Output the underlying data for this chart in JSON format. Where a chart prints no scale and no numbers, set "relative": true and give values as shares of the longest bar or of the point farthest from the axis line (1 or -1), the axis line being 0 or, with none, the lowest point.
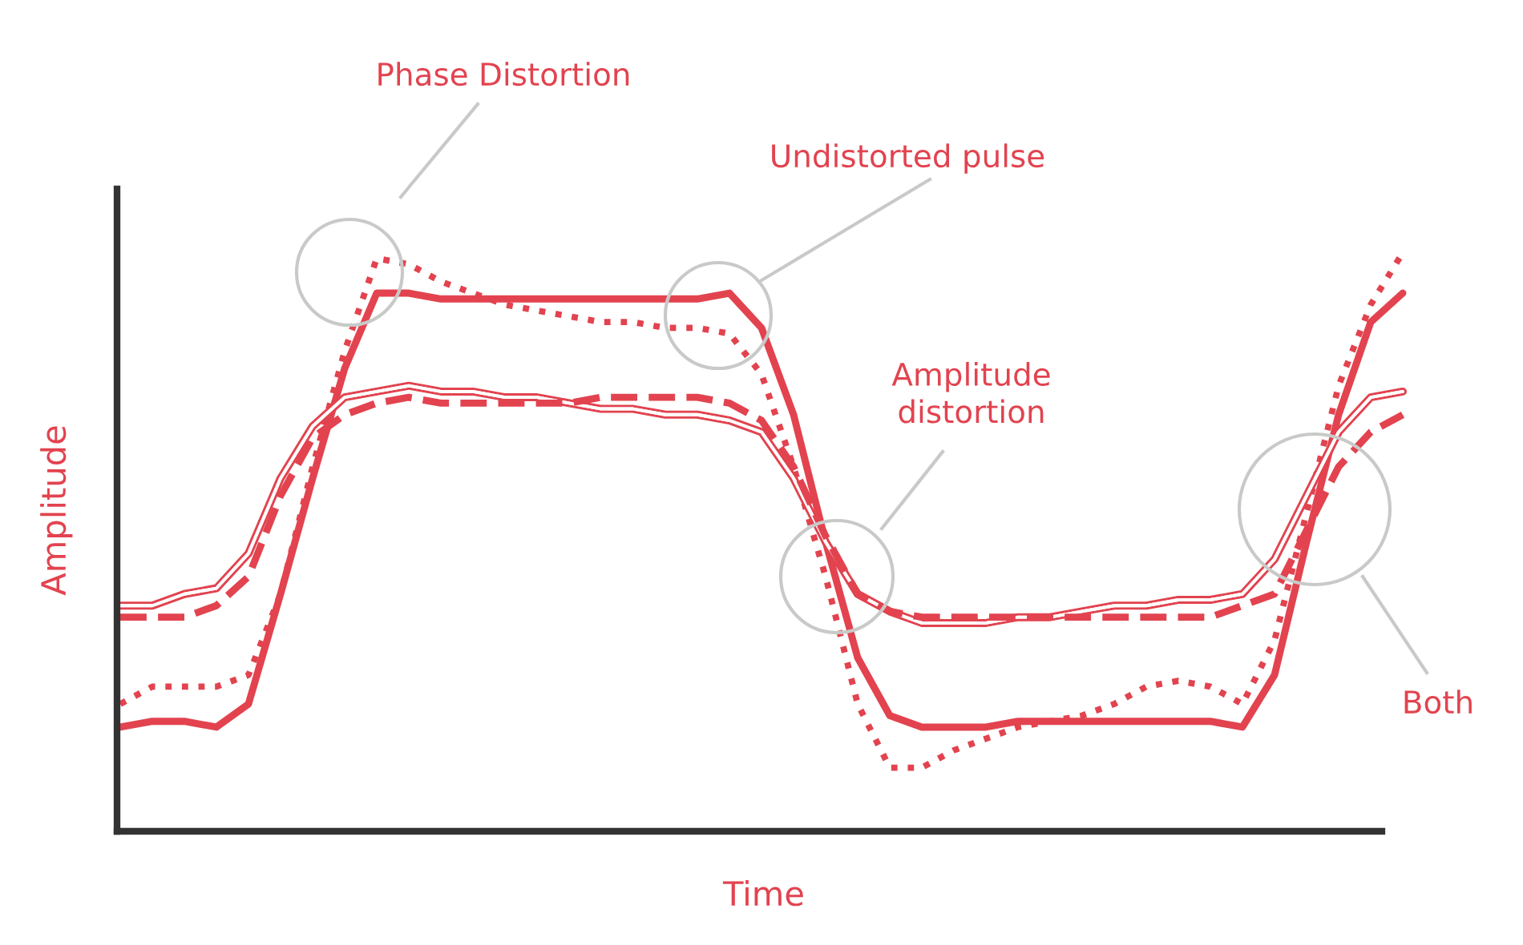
{
  "chart_data": {
    "type": "line",
    "relative": true,
    "xlabel": "Time",
    "ylabel": "Amplitude",
    "categories": [
      null,
      null,
      null,
      null,
      null,
      null,
      null,
      null,
      null,
      null,
      null,
      null,
      null,
      null,
      null,
      null,
      null,
      null,
      null,
      null,
      null,
      null,
      null,
      null,
      null,
      null,
      null,
      null,
      null,
      null,
      null,
      null,
      null,
      null,
      null,
      null,
      null,
      null,
      null,
      null,
      null
    ],
    "series": [
      {
        "color": "#e2434f",
        "line_style": "solid",
        "values": [
          0.18,
          0.19,
          0.19,
          0.18,
          0.22,
          0.41,
          0.61,
          0.8,
          0.93,
          0.93,
          0.92,
          0.92,
          0.92,
          0.92,
          0.92,
          0.92,
          0.92,
          0.92,
          0.92,
          0.93,
          0.87,
          0.72,
          0.5,
          0.3,
          0.2,
          0.18,
          0.18,
          0.18,
          0.19,
          0.19,
          0.19,
          0.19,
          0.19,
          0.19,
          0.19,
          0.18,
          0.27,
          0.5,
          0.72,
          0.88,
          0.93
        ]
      },
      {
        "color": "#e2434f",
        "line_style": "dotted",
        "values": [
          0.22,
          0.25,
          0.25,
          0.25,
          0.27,
          0.41,
          0.63,
          0.83,
          0.99,
          0.98,
          0.95,
          0.93,
          0.91,
          0.9,
          0.89,
          0.88,
          0.88,
          0.87,
          0.87,
          0.86,
          0.79,
          0.63,
          0.44,
          0.22,
          0.11,
          0.11,
          0.14,
          0.16,
          0.18,
          0.19,
          0.2,
          0.22,
          0.25,
          0.26,
          0.25,
          0.22,
          0.33,
          0.55,
          0.77,
          0.91,
          1.0
        ]
      },
      {
        "color": "#e2434f",
        "line_style": "solid",
        "values": [
          0.39,
          0.39,
          0.41,
          0.42,
          0.48,
          0.61,
          0.7,
          0.75,
          0.76,
          0.77,
          0.76,
          0.76,
          0.75,
          0.75,
          0.74,
          0.73,
          0.73,
          0.72,
          0.72,
          0.71,
          0.69,
          0.61,
          0.5,
          0.41,
          0.38,
          0.36,
          0.36,
          0.36,
          0.37,
          0.37,
          0.38,
          0.39,
          0.39,
          0.4,
          0.4,
          0.41,
          0.47,
          0.58,
          0.69,
          0.75,
          0.76
        ]
      },
      {
        "color": "#e2434f",
        "line_style": "dashed",
        "values": [
          0.37,
          0.37,
          0.37,
          0.39,
          0.44,
          0.58,
          0.68,
          0.72,
          0.74,
          0.75,
          0.74,
          0.74,
          0.74,
          0.74,
          0.74,
          0.75,
          0.75,
          0.75,
          0.75,
          0.74,
          0.71,
          0.63,
          0.51,
          0.41,
          0.38,
          0.37,
          0.37,
          0.37,
          0.37,
          0.37,
          0.37,
          0.37,
          0.37,
          0.37,
          0.37,
          0.39,
          0.41,
          0.52,
          0.63,
          0.69,
          0.72
        ]
      }
    ],
    "annotations": [
      "Phase Distortion",
      "Undistorted pulse",
      "Amplitude\ndistortion",
      "Both"
    ]
  }
}
